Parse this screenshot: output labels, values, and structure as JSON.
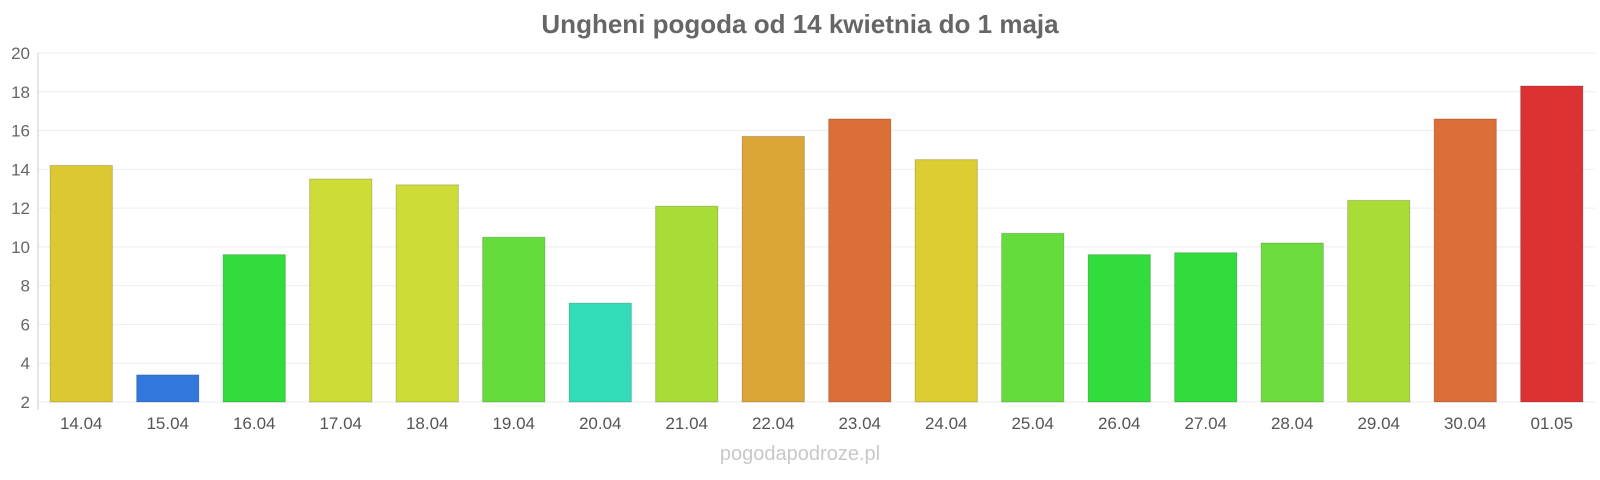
{
  "chart_data": {
    "type": "bar",
    "title": "Ungheni pogoda od 14 kwietnia do 1 maja",
    "xlabel": "",
    "ylabel": "",
    "ylim": [
      2,
      20
    ],
    "yticks": [
      2,
      4,
      6,
      8,
      10,
      12,
      14,
      16,
      18,
      20
    ],
    "grid": true,
    "categories": [
      "14.04",
      "15.04",
      "16.04",
      "17.04",
      "18.04",
      "19.04",
      "20.04",
      "21.04",
      "22.04",
      "23.04",
      "24.04",
      "25.04",
      "26.04",
      "27.04",
      "28.04",
      "29.04",
      "30.04",
      "01.05"
    ],
    "values": [
      14.2,
      3.4,
      9.6,
      13.5,
      13.2,
      10.5,
      7.1,
      12.1,
      15.7,
      16.6,
      14.5,
      10.7,
      9.6,
      9.7,
      10.2,
      12.4,
      16.6,
      18.3
    ],
    "colors": [
      "#dcc832",
      "#3278dc",
      "#32dc3c",
      "#cddc37",
      "#cddc37",
      "#64dc3c",
      "#32dcb9",
      "#aadc37",
      "#dca537",
      "#dc6e37",
      "#dccd32",
      "#64dc3c",
      "#32dc3c",
      "#32dc3c",
      "#6edc3c",
      "#aadc37",
      "#dc6e37",
      "#dc3232"
    ]
  },
  "watermark": "pogodapodroze.pl"
}
